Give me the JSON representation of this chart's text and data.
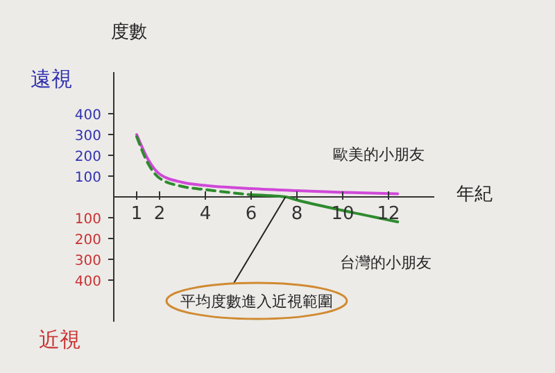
{
  "chart_data": {
    "type": "line",
    "xlabel": "年紀",
    "ylabel": "度數",
    "annotations": [
      "遠視",
      "近視",
      {
        "text": "平均度數進入近視範圍",
        "x": 7.5,
        "y": 0
      }
    ],
    "xlim": [
      0,
      14
    ],
    "xticks": [
      1,
      2,
      4,
      6,
      8,
      10,
      12
    ],
    "ylim": [
      -600,
      600
    ],
    "yticks": [
      {
        "value": -400,
        "label": "400"
      },
      {
        "value": -300,
        "label": "300"
      },
      {
        "value": -200,
        "label": "200"
      },
      {
        "value": -100,
        "label": "100"
      },
      100,
      200,
      300,
      400
    ],
    "marker": "none",
    "series": [
      {
        "name": "歐美的小朋友",
        "color": "#d048d8",
        "x": [
          1,
          1.5,
          2,
          3,
          4,
          6,
          8,
          10,
          12.4
        ],
        "values": [
          300,
          180,
          110,
          70,
          55,
          40,
          30,
          22,
          15
        ]
      },
      {
        "color": "#2e8b2e",
        "line_style": "dashed",
        "x": [
          1,
          1.5,
          2,
          3,
          4,
          6
        ],
        "values": [
          290,
          160,
          90,
          50,
          35,
          10
        ]
      },
      {
        "name": "台灣的小朋友",
        "color": "#2e8b2e",
        "x": [
          6,
          7.5,
          8,
          10,
          12.4
        ],
        "values": [
          10,
          0,
          -15,
          -65,
          -120
        ]
      }
    ]
  }
}
